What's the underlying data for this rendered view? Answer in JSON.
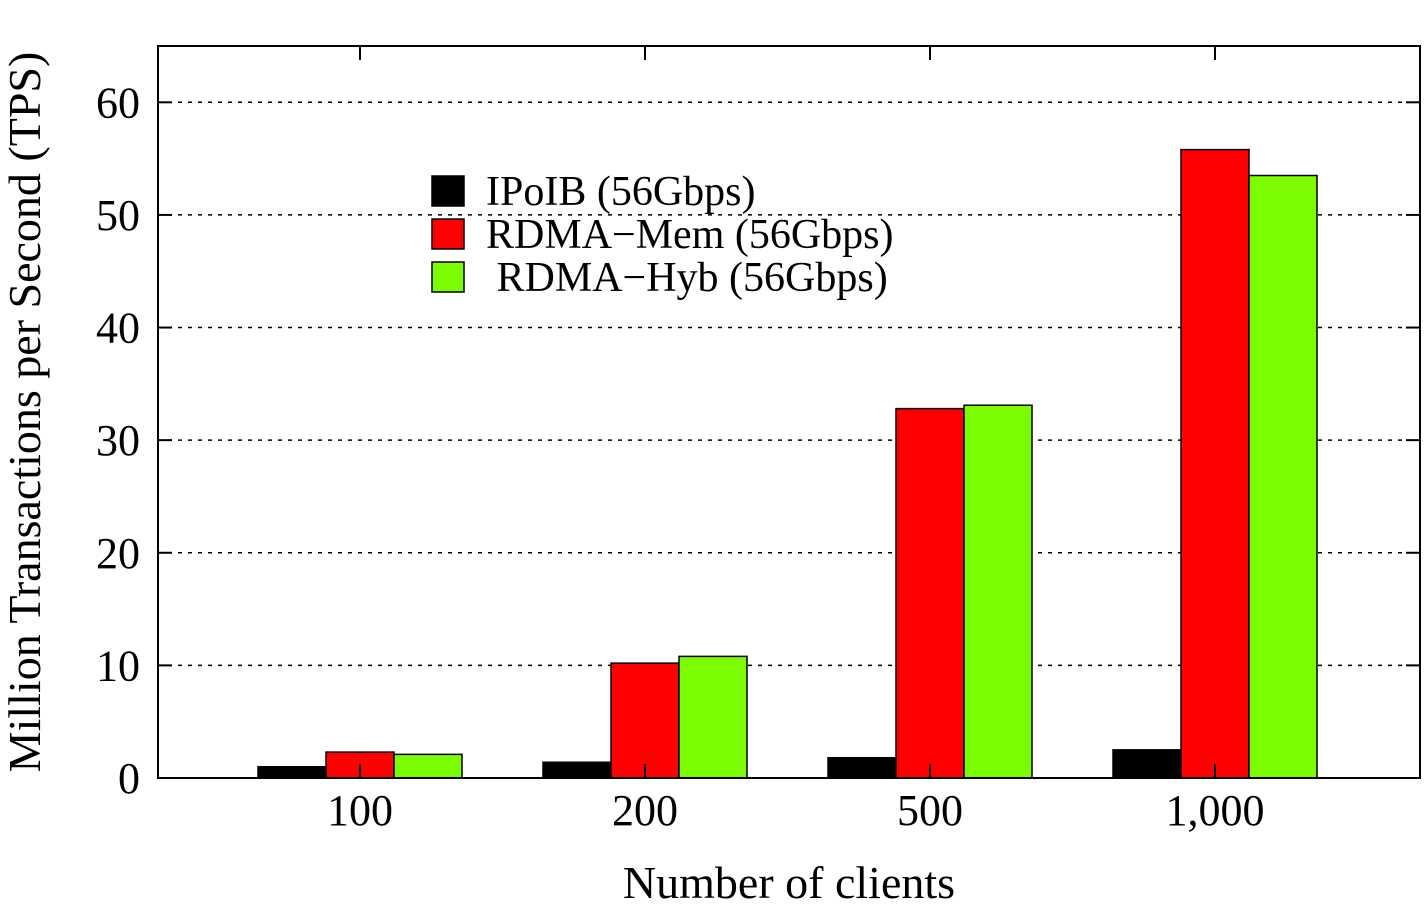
{
  "chart_data": {
    "type": "bar",
    "title": "",
    "xlabel": "Number of clients",
    "ylabel": "Million Transactions per Second (TPS)",
    "categories": [
      "100",
      "200",
      "500",
      "1,000"
    ],
    "ylim": [
      0,
      65
    ],
    "yticks": [
      0,
      10,
      20,
      30,
      40,
      50,
      60
    ],
    "grid": "horizontal dashed",
    "legend_position": "top-left",
    "series": [
      {
        "name": "IPoIB (56Gbps)",
        "color": "#000000",
        "values": [
          1.0,
          1.4,
          1.8,
          2.5
        ]
      },
      {
        "name": "RDMA−Mem (56Gbps)",
        "color": "#ff0000",
        "values": [
          2.3,
          10.2,
          32.8,
          55.8
        ]
      },
      {
        "name": " RDMA−Hyb (56Gbps)",
        "color": "#7cfc00",
        "values": [
          2.1,
          10.8,
          33.1,
          53.5
        ]
      }
    ]
  }
}
